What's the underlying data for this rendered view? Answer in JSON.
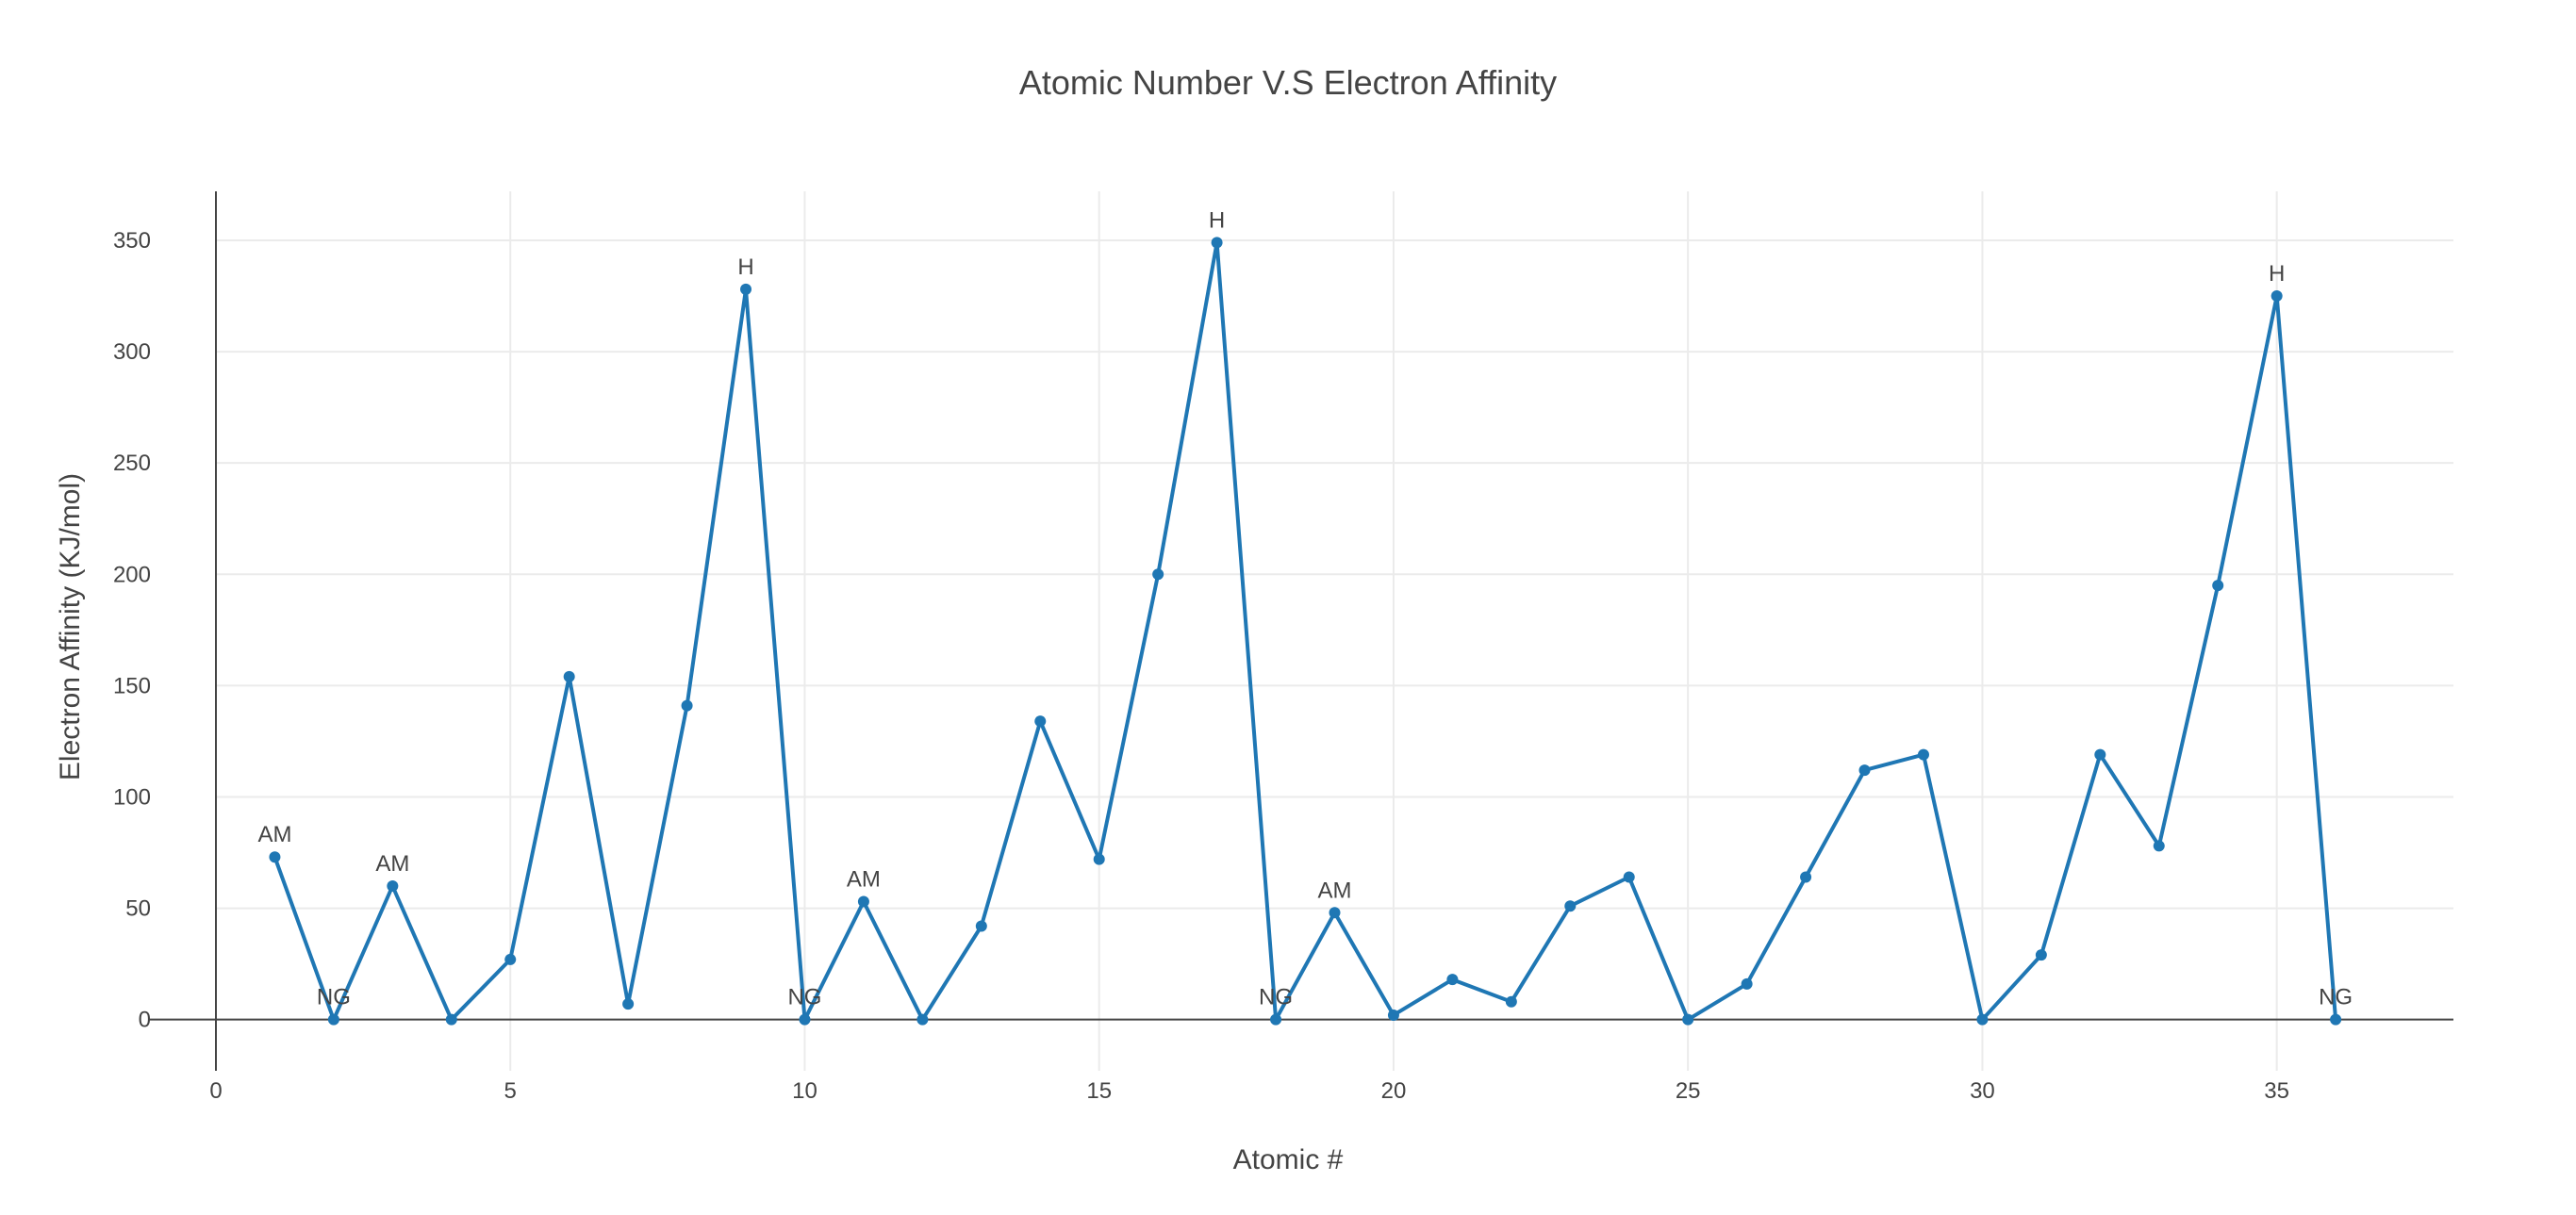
{
  "chart_data": {
    "type": "line",
    "title": "Atomic Number V.S Electron Affinity",
    "xlabel": "Atomic #",
    "ylabel": "Electron Affinity (KJ/mol)",
    "xlim": [
      0,
      38
    ],
    "ylim": [
      -23,
      372
    ],
    "xticks": [
      0,
      5,
      10,
      15,
      20,
      25,
      30,
      35
    ],
    "yticks": [
      0,
      50,
      100,
      150,
      200,
      250,
      300,
      350
    ],
    "grid": true,
    "color": "#1f77b4",
    "series": [
      {
        "x": [
          1,
          2,
          3,
          4,
          5,
          6,
          7,
          8,
          9,
          10,
          11,
          12,
          13,
          14,
          15,
          16,
          17,
          18,
          19,
          20,
          21,
          22,
          23,
          24,
          25,
          26,
          27,
          28,
          29,
          30,
          31,
          32,
          33,
          34,
          35,
          36
        ],
        "values": [
          73,
          0,
          60,
          0,
          27,
          154,
          7,
          141,
          328,
          0,
          53,
          0,
          42,
          134,
          72,
          200,
          349,
          0,
          48,
          2,
          18,
          8,
          51,
          64,
          0,
          16,
          64,
          112,
          119,
          0,
          29,
          119,
          78,
          195,
          325,
          0
        ],
        "labels": [
          "AM",
          "NG",
          "AM",
          "",
          "",
          "",
          "",
          "",
          "H",
          "NG",
          "AM",
          "",
          "",
          "",
          "",
          "",
          "H",
          "NG",
          "AM",
          "",
          "",
          "",
          "",
          "",
          "",
          "",
          "",
          "",
          "",
          "",
          "",
          "",
          "",
          "",
          "H",
          "NG"
        ]
      }
    ]
  }
}
